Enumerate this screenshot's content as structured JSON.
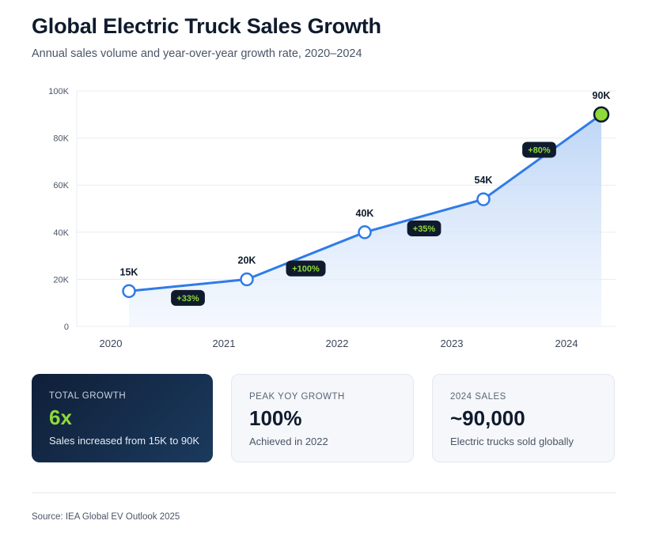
{
  "header": {
    "title": "Global Electric Truck Sales Growth",
    "subtitle": "Annual sales volume and year-over-year growth rate, 2020–2024"
  },
  "chart_data": {
    "type": "area",
    "title": "Global Electric Truck Sales Growth",
    "xlabel": "",
    "ylabel": "",
    "ylim": [
      0,
      100000
    ],
    "yticks": [
      0,
      20000,
      40000,
      60000,
      80000,
      100000
    ],
    "ytick_labels": [
      "0",
      "20K",
      "40K",
      "60K",
      "80K",
      "100K"
    ],
    "categories": [
      "2020",
      "2021",
      "2022",
      "2023",
      "2024"
    ],
    "series": [
      {
        "name": "Sales",
        "values": [
          15000,
          20000,
          40000,
          54000,
          90000
        ]
      }
    ],
    "point_labels": [
      "15K",
      "20K",
      "40K",
      "54K",
      "90K"
    ],
    "growth_labels": [
      "+33%",
      "+100%",
      "+35%",
      "+80%"
    ],
    "grid": true,
    "colors": {
      "line": "#2f7be8",
      "fill": "#c6dcf8",
      "highlight": "#8fd93a",
      "badge": "#0f1b2d",
      "badge_text": "#8fd93a"
    }
  },
  "cards": [
    {
      "label": "TOTAL GROWTH",
      "value": "6x",
      "desc": "Sales increased from 15K to 90K"
    },
    {
      "label": "PEAK YOY GROWTH",
      "value": "100%",
      "desc": "Achieved in 2022"
    },
    {
      "label": "2024 SALES",
      "value": "~90,000",
      "desc": "Electric trucks sold globally"
    }
  ],
  "footer": {
    "source": "Source: IEA Global EV Outlook 2025"
  }
}
